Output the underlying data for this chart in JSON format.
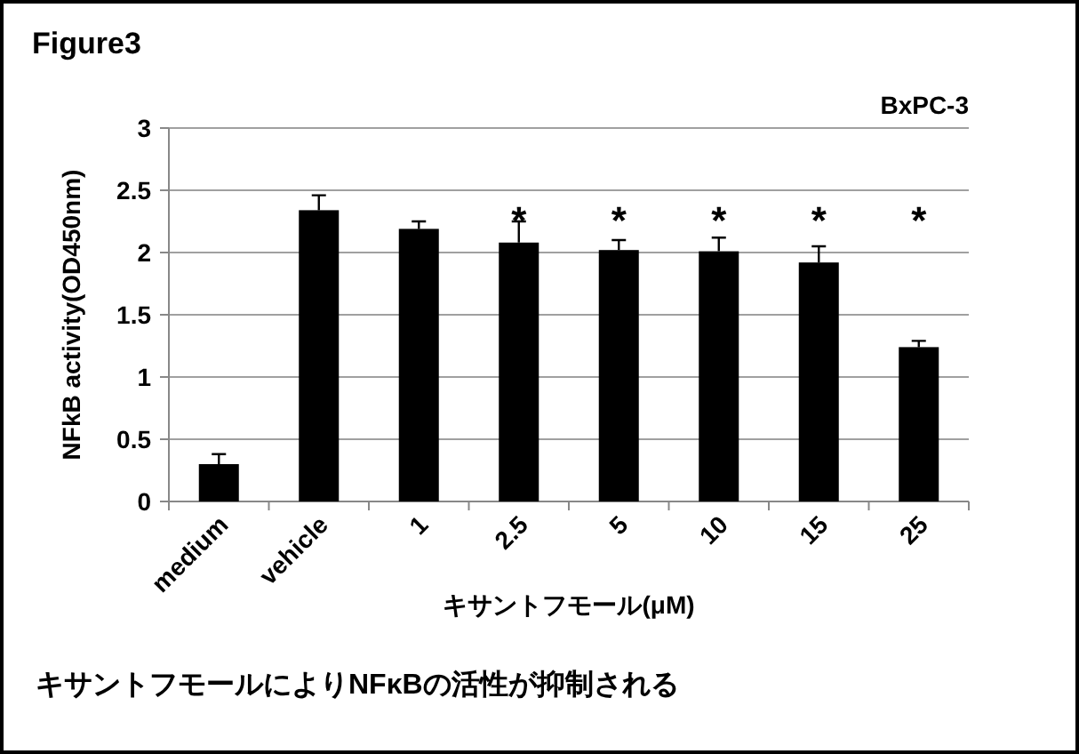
{
  "chart_data": {
    "type": "bar",
    "title": "Figure3",
    "subtitle": "BxPC-3",
    "xlabel": "キサントフモール(μM)",
    "ylabel": "NFkB activity(OD450nm)",
    "categories": [
      "medium",
      "vehicle",
      "1",
      "2.5",
      "5",
      "10",
      "15",
      "25"
    ],
    "values": [
      0.3,
      2.34,
      2.19,
      2.08,
      2.02,
      2.01,
      1.92,
      1.24
    ],
    "errors": [
      [
        0.3,
        0.38
      ],
      [
        2.34,
        2.46
      ],
      [
        2.19,
        2.25
      ],
      [
        2.08,
        2.25
      ],
      [
        2.02,
        2.1
      ],
      [
        2.01,
        2.12
      ],
      [
        1.92,
        2.05
      ],
      [
        1.24,
        1.29
      ]
    ],
    "color": "#000000",
    "ylim": [
      0,
      3
    ],
    "yticks": [
      0,
      0.5,
      1,
      1.5,
      2,
      2.5,
      3
    ],
    "grid": "y",
    "annotations": [
      "*",
      "*",
      "*",
      "*",
      "*",
      "キサントフモールによりNFκBの活性が抑制される"
    ]
  }
}
